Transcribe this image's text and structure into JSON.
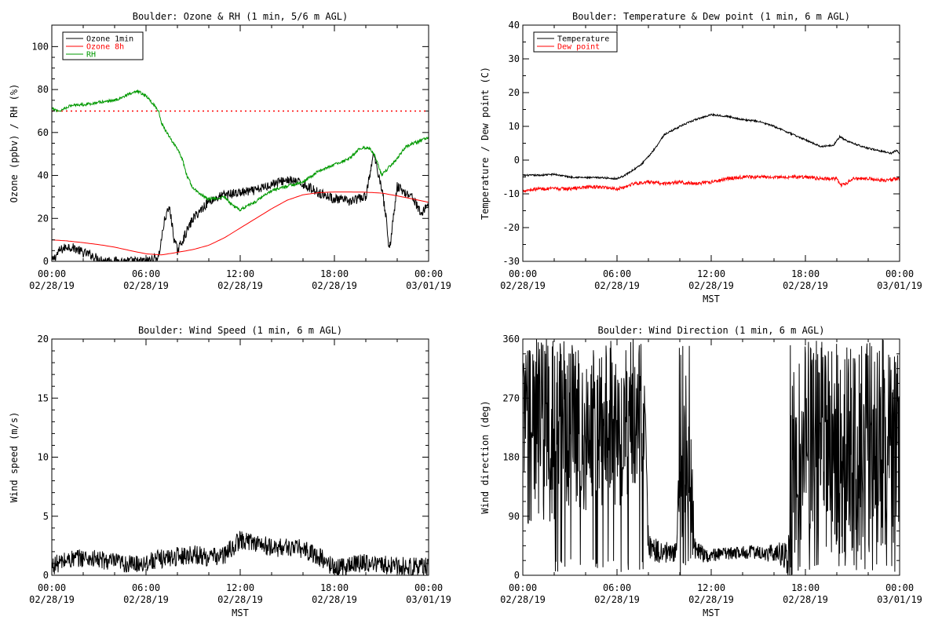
{
  "chart_data": [
    {
      "type": "line",
      "title": "Boulder: Ozone & RH (1 min, 5/6 m AGL)",
      "ylabel": "Ozone (ppbv) / RH (%)",
      "xlabel": "",
      "ylim": [
        0,
        110
      ],
      "yticks": [
        0,
        20,
        40,
        60,
        80,
        100
      ],
      "xticks": [
        "00:00|02/28/19",
        "06:00|02/28/19",
        "12:00|02/28/19",
        "18:00|02/28/19",
        "00:00|03/01/19"
      ],
      "x_hours_range": [
        0,
        24
      ],
      "legend": {
        "placement": "top-left",
        "entries": [
          "Ozone 1min",
          "Ozone 8h",
          "RH"
        ]
      },
      "reference_line": {
        "y": 70,
        "color": "#ff0000",
        "style": "dotted"
      },
      "series": [
        {
          "name": "Ozone 1min",
          "color": "#000000",
          "style": "jagged",
          "noise": 2.2,
          "x": [
            0,
            0.5,
            1,
            1.5,
            2,
            2.5,
            3,
            4,
            5,
            6,
            6.8,
            7.2,
            7.5,
            7.8,
            8,
            9,
            10,
            11,
            12,
            13,
            14,
            15,
            16,
            17,
            18,
            19,
            20,
            20.5,
            21,
            21.3,
            21.5,
            22,
            22.5,
            23,
            23.5,
            24
          ],
          "y": [
            0,
            5,
            7,
            6,
            4,
            3,
            1,
            0,
            0,
            0,
            2,
            20,
            25,
            10,
            5,
            20,
            28,
            31,
            32,
            33,
            36,
            38,
            36,
            32,
            29,
            28,
            30,
            50,
            35,
            20,
            5,
            35,
            32,
            30,
            22,
            27
          ]
        },
        {
          "name": "Ozone 8h",
          "color": "#ff0000",
          "style": "smooth",
          "x": [
            0,
            1,
            2,
            3,
            4,
            5,
            6,
            7,
            8,
            9,
            10,
            11,
            12,
            13,
            14,
            15,
            16,
            17,
            18,
            19,
            20,
            21,
            22,
            23,
            24
          ],
          "y": [
            10,
            9.5,
            8.7,
            7.8,
            6.6,
            5,
            3.5,
            3,
            4.2,
            5.5,
            7.5,
            11,
            15.5,
            20,
            24.5,
            28.5,
            31,
            32,
            32.3,
            32.3,
            32.2,
            31.8,
            30.5,
            29,
            27.5
          ]
        },
        {
          "name": "RH",
          "color": "#009900",
          "style": "jagged",
          "noise": 0.7,
          "x": [
            0,
            0.5,
            1,
            1.5,
            2,
            3,
            4,
            5,
            5.5,
            6,
            6.5,
            6.8,
            7,
            7.5,
            8,
            8.3,
            8.6,
            9,
            9.5,
            10,
            11,
            11.5,
            12,
            12.5,
            13,
            14,
            15,
            16,
            17,
            18,
            19,
            19.5,
            20,
            20.3,
            20.6,
            21,
            21.5,
            22,
            22.5,
            23,
            23.5,
            24
          ],
          "y": [
            71,
            70,
            72,
            73,
            73,
            74,
            75,
            78,
            79,
            77,
            73,
            70,
            64,
            58,
            52,
            48,
            40,
            34,
            31,
            29,
            30,
            26,
            24,
            26,
            28,
            33,
            35,
            37,
            42,
            45,
            48,
            52,
            53,
            52,
            49,
            40,
            44,
            48,
            53,
            55,
            56,
            58
          ]
        }
      ]
    },
    {
      "type": "line",
      "title": "Boulder: Temperature & Dew point (1 min, 6 m AGL)",
      "ylabel": "Temperature / Dew point (C)",
      "xlabel": "MST",
      "ylim": [
        -30,
        40
      ],
      "yticks": [
        -30,
        -20,
        -10,
        0,
        10,
        20,
        30,
        40
      ],
      "xticks": [
        "00:00|02/28/19",
        "06:00|02/28/19",
        "12:00|02/28/19",
        "18:00|02/28/19",
        "00:00|03/01/19"
      ],
      "x_hours_range": [
        0,
        24
      ],
      "legend": {
        "placement": "top-left",
        "entries": [
          "Temperature",
          "Dew point"
        ]
      },
      "series": [
        {
          "name": "Temperature",
          "color": "#000000",
          "style": "jagged",
          "noise": 0.25,
          "x": [
            0,
            1,
            2,
            3,
            4,
            5,
            6,
            6.5,
            7,
            7.5,
            8,
            8.5,
            9,
            10,
            11,
            12,
            13,
            14,
            15,
            16,
            17,
            18,
            19,
            19.8,
            20.2,
            20.5,
            21,
            22,
            23,
            23.5,
            23.8,
            24
          ],
          "y": [
            -4.5,
            -4.5,
            -4.2,
            -5,
            -5.2,
            -5.2,
            -5.5,
            -4.5,
            -3,
            -1.5,
            1,
            4,
            7.5,
            10,
            12,
            13.5,
            13,
            12,
            11.5,
            10,
            8,
            6,
            4,
            4.5,
            7,
            6,
            5,
            3.5,
            2.5,
            2,
            3,
            2
          ]
        },
        {
          "name": "Dew point",
          "color": "#ff0000",
          "style": "jagged",
          "noise": 0.5,
          "x": [
            0,
            1,
            2,
            3,
            4,
            5,
            6,
            6.5,
            7,
            8,
            9,
            10,
            11,
            12,
            13,
            14,
            15,
            16,
            17,
            18,
            19,
            20,
            20.3,
            20.6,
            21,
            22,
            23,
            24
          ],
          "y": [
            -9,
            -8.5,
            -8.5,
            -8.5,
            -8,
            -8,
            -8.5,
            -8,
            -7,
            -6.5,
            -7,
            -6.5,
            -7,
            -6.5,
            -5.5,
            -5,
            -5,
            -5,
            -5,
            -5,
            -5.5,
            -5.5,
            -7.5,
            -7,
            -5.5,
            -5.5,
            -6,
            -5.5
          ]
        }
      ]
    },
    {
      "type": "line",
      "title": "Boulder: Wind Speed (1 min, 6 m AGL)",
      "ylabel": "Wind speed (m/s)",
      "xlabel": "MST",
      "ylim": [
        0,
        20
      ],
      "yticks": [
        0,
        5,
        10,
        15,
        20
      ],
      "xticks": [
        "00:00|02/28/19",
        "06:00|02/28/19",
        "12:00|02/28/19",
        "18:00|02/28/19",
        "00:00|03/01/19"
      ],
      "x_hours_range": [
        0,
        24
      ],
      "series": [
        {
          "name": "",
          "color": "#000000",
          "style": "jagged",
          "noise": 0.8,
          "x": [
            0,
            1,
            2,
            3,
            4,
            5,
            6,
            7,
            8,
            9,
            10,
            11,
            12,
            13,
            14,
            15,
            16,
            17,
            18,
            19,
            20,
            21,
            22,
            23,
            24
          ],
          "y": [
            0.8,
            1.3,
            1.5,
            1.3,
            1.1,
            0.9,
            1.1,
            1.4,
            1.6,
            1.8,
            1.5,
            1.7,
            3.0,
            2.8,
            2.3,
            2.4,
            2.2,
            1.6,
            0.6,
            0.9,
            1.1,
            0.9,
            0.8,
            0.7,
            0.7
          ]
        }
      ]
    },
    {
      "type": "scatter",
      "title": "Boulder: Wind Direction (1 min, 6 m AGL)",
      "ylabel": "Wind direction (deg)",
      "xlabel": "MST",
      "ylim": [
        0,
        360
      ],
      "yticks": [
        0,
        90,
        180,
        270,
        360
      ],
      "xticks": [
        "00:00|02/28/19",
        "06:00|02/28/19",
        "12:00|02/28/19",
        "18:00|02/28/19",
        "00:00|03/01/19"
      ],
      "x_hours_range": [
        0,
        24
      ],
      "series": [
        {
          "name": "",
          "color": "#000000",
          "style": "direction",
          "x": [
            0,
            2,
            3,
            4,
            5,
            6,
            7,
            7.8,
            8,
            9,
            9.8,
            10,
            10.5,
            11,
            11.5,
            12,
            14,
            16,
            16.8,
            17,
            17.5,
            18,
            20,
            22,
            24
          ],
          "y": [
            230,
            220,
            230,
            215,
            225,
            210,
            220,
            230,
            40,
            35,
            35,
            100,
            180,
            40,
            30,
            30,
            35,
            35,
            30,
            100,
            200,
            200,
            190,
            190,
            190
          ],
          "spread": [
            150,
            150,
            130,
            120,
            120,
            110,
            100,
            80,
            25,
            15,
            20,
            150,
            160,
            15,
            15,
            10,
            10,
            15,
            20,
            160,
            160,
            150,
            160,
            160,
            150
          ]
        }
      ]
    }
  ]
}
